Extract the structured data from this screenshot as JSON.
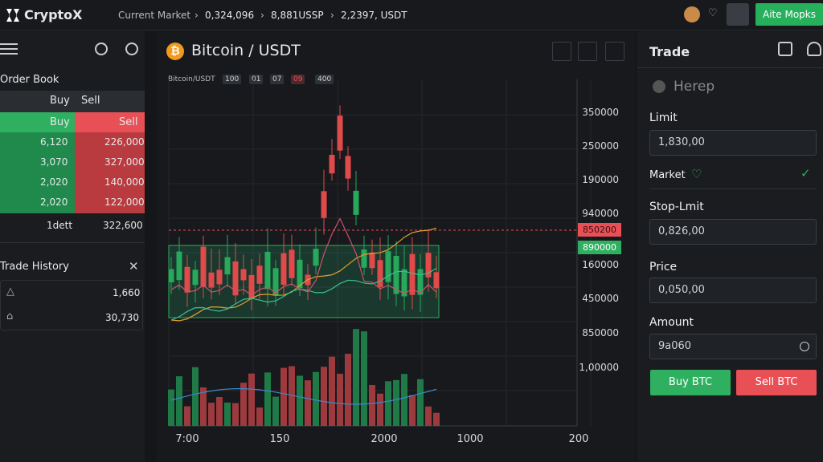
{
  "header": {
    "logo": "CryptoX",
    "ticker": [
      "Current Market",
      "0,324,096",
      "8,881USSP",
      "2,2397, USDT"
    ],
    "button": "Aite Mopks"
  },
  "order_book": {
    "title": "Order Book",
    "tabs": [
      "Buy",
      "Sell"
    ],
    "columns": [
      "Buy",
      "Sell"
    ],
    "rows": [
      [
        "6,120",
        "226,000"
      ],
      [
        "3,070",
        "327,000"
      ],
      [
        "2,020",
        "140,000"
      ],
      [
        "2,020",
        "122,000"
      ]
    ],
    "footer": [
      "1dett",
      "322,600"
    ]
  },
  "trade_history": {
    "title": "Trade History",
    "rows": [
      "1,660",
      "30,730"
    ]
  },
  "chart": {
    "title": "Bitcoin / USDT",
    "pair": "Bitcoin/USDT",
    "intervals": [
      "100",
      "01",
      "07",
      "09",
      "400"
    ],
    "y_labels": [
      "350000",
      "250000",
      "190000",
      "940000",
      "160000",
      "450000",
      "850000",
      "1,00000"
    ],
    "price_tags": [
      "850200",
      "890000"
    ],
    "x_labels": [
      "7:00",
      "150",
      "2000",
      "1000",
      "200"
    ]
  },
  "trade": {
    "title": "Trade",
    "search": "Herep",
    "limit_label": "Limit",
    "limit_value": "1,830,00",
    "market": "Market",
    "stop_label": "Stop-Lmit",
    "stop_value": "0,826,00",
    "price_label": "Price",
    "price_value": "0,050,00",
    "amount_label": "Amount",
    "amount_value": "9a060",
    "buy": "Buy BTC",
    "sell": "Sell BTC"
  }
}
